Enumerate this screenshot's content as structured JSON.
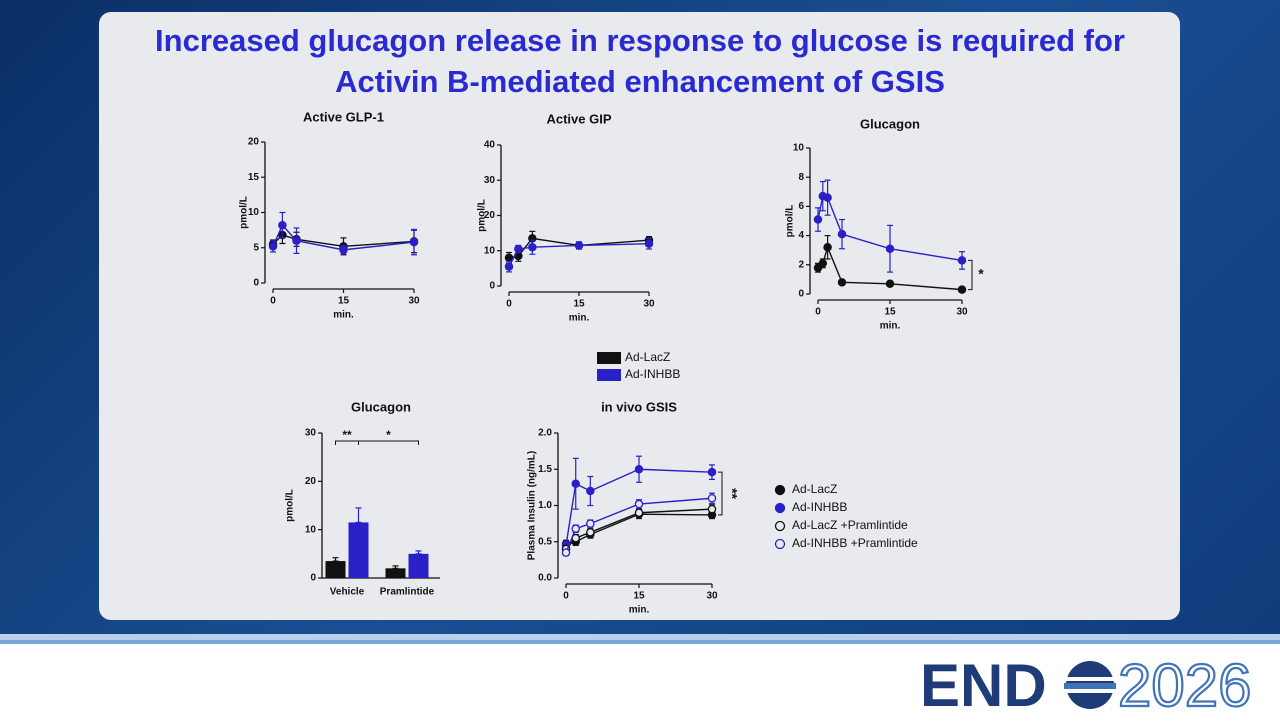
{
  "slide": {
    "title": "Increased glucagon release in response to glucose is required for Activin B-mediated enhancement of GSIS",
    "logo": {
      "left": "END",
      "right": "2026"
    }
  },
  "chart_data": [
    {
      "type": "line",
      "title": "Active GLP-1",
      "x_label": "min.",
      "y_label": "pmol/L",
      "x": [
        0,
        2,
        5,
        15,
        30
      ],
      "xlim": [
        0,
        30
      ],
      "xticks": [
        0,
        15,
        30
      ],
      "ylim": [
        0,
        20
      ],
      "yticks": [
        0,
        5,
        10,
        15,
        20
      ],
      "series": [
        {
          "name": "Ad-LacZ",
          "color": "#111111",
          "marker": "filled",
          "values": [
            5.5,
            6.8,
            6.2,
            5.2,
            5.9
          ],
          "errors": [
            0.6,
            1.2,
            1.0,
            1.2,
            1.6
          ]
        },
        {
          "name": "Ad-INHBB",
          "color": "#2a20c8",
          "marker": "filled",
          "values": [
            5.2,
            8.2,
            6.0,
            4.7,
            5.8
          ],
          "errors": [
            0.8,
            1.8,
            1.8,
            0.6,
            1.8
          ]
        }
      ]
    },
    {
      "type": "line",
      "title": "Active GIP",
      "x_label": "min.",
      "y_label": "pmol/L",
      "x": [
        0,
        2,
        5,
        15,
        30
      ],
      "xlim": [
        0,
        30
      ],
      "xticks": [
        0,
        15,
        30
      ],
      "ylim": [
        0,
        40
      ],
      "yticks": [
        0,
        10,
        20,
        30,
        40
      ],
      "series": [
        {
          "name": "Ad-LacZ",
          "color": "#111111",
          "marker": "filled",
          "values": [
            8,
            8.5,
            13.5,
            11.5,
            13
          ],
          "errors": [
            1.5,
            1.5,
            2,
            1,
            1
          ]
        },
        {
          "name": "Ad-INHBB",
          "color": "#2a20c8",
          "marker": "filled",
          "values": [
            5.5,
            10.5,
            11,
            11.5,
            12
          ],
          "errors": [
            1.5,
            1,
            2,
            1,
            1.5
          ]
        }
      ]
    },
    {
      "type": "line",
      "title": "Glucagon",
      "x_label": "min.",
      "y_label": "pmol/L",
      "annotation": "*",
      "x": [
        0,
        1,
        2,
        5,
        15,
        30
      ],
      "xlim": [
        0,
        30
      ],
      "xticks": [
        0,
        15,
        30
      ],
      "ylim": [
        0,
        10
      ],
      "yticks": [
        0,
        2,
        4,
        6,
        8,
        10
      ],
      "series": [
        {
          "name": "Ad-LacZ",
          "color": "#111111",
          "marker": "filled",
          "values": [
            1.8,
            2.1,
            3.2,
            0.8,
            0.7,
            0.3
          ],
          "errors": [
            0.3,
            0.3,
            0.8,
            0.1,
            0.1,
            0.1
          ]
        },
        {
          "name": "Ad-INHBB",
          "color": "#2a20c8",
          "marker": "filled",
          "values": [
            5.1,
            6.7,
            6.6,
            4.1,
            3.1,
            2.3
          ],
          "errors": [
            0.8,
            1.0,
            1.2,
            1.0,
            1.6,
            0.6
          ]
        }
      ]
    },
    {
      "type": "bar",
      "title": "Glucagon",
      "y_label": "pmol/L",
      "annotations": [
        "**",
        "*"
      ],
      "categories": [
        "Vehicle",
        "Pramlintide"
      ],
      "ylim": [
        0,
        30
      ],
      "yticks": [
        0,
        10,
        20,
        30
      ],
      "series": [
        {
          "name": "Ad-LacZ",
          "color": "#111111",
          "values": [
            3.5,
            2.0
          ],
          "errors": [
            0.7,
            0.5
          ]
        },
        {
          "name": "Ad-INHBB",
          "color": "#2a20c8",
          "values": [
            11.5,
            5.0
          ],
          "errors": [
            3.0,
            0.6
          ]
        }
      ]
    },
    {
      "type": "line",
      "title": "in vivo GSIS",
      "x_label": "min.",
      "y_label": "Plasma Insulin (ng/mL)",
      "annotation": "**",
      "x": [
        0,
        2,
        5,
        15,
        30
      ],
      "xlim": [
        0,
        30
      ],
      "xticks": [
        0,
        15,
        30
      ],
      "ylim": [
        0,
        2
      ],
      "yticks": [
        {
          "value": 0,
          "label": "0.0"
        },
        {
          "value": 0.5,
          "label": "0.5"
        },
        {
          "value": 1,
          "label": "1.0"
        },
        {
          "value": 1.5,
          "label": "1.5"
        },
        {
          "value": 2,
          "label": "2.0"
        }
      ],
      "series": [
        {
          "name": "Ad-LacZ",
          "color": "#111111",
          "marker": "filled",
          "values": [
            0.47,
            0.5,
            0.6,
            0.88,
            0.87
          ],
          "errors": [
            0.05,
            0.05,
            0.05,
            0.06,
            0.05
          ]
        },
        {
          "name": "Ad-INHBB",
          "color": "#2a20c8",
          "marker": "filled",
          "values": [
            0.45,
            1.3,
            1.2,
            1.5,
            1.46
          ],
          "errors": [
            0.05,
            0.35,
            0.2,
            0.18,
            0.1
          ]
        },
        {
          "name": "Ad-LacZ +Pramlintide",
          "color": "#111111",
          "marker": "open",
          "values": [
            0.4,
            0.55,
            0.63,
            0.9,
            0.95
          ],
          "errors": [
            0.05,
            0.05,
            0.05,
            0.05,
            0.06
          ]
        },
        {
          "name": "Ad-INHBB +Pramlintide",
          "color": "#2a20c8",
          "marker": "open",
          "values": [
            0.35,
            0.68,
            0.75,
            1.02,
            1.1
          ],
          "errors": [
            0.04,
            0.05,
            0.05,
            0.06,
            0.07
          ]
        }
      ]
    }
  ]
}
